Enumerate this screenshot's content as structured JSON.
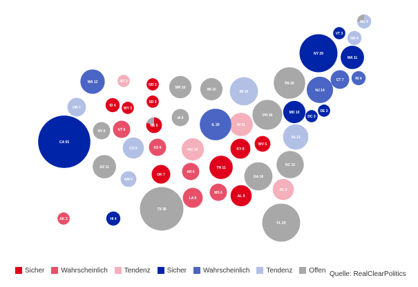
{
  "chart_data": {
    "type": "bubble-map",
    "title": "",
    "categories": {
      "D_safe": "#e0001b",
      "D_likely": "#e8506a",
      "D_lean": "#f4b0bb",
      "R_safe": "#0024a8",
      "R_likely": "#4a65c4",
      "R_lean": "#b2c0e6",
      "tossup": "#a8a8a8"
    },
    "states": [
      {
        "state": "ME",
        "votes": 4,
        "cat": "R_lean",
        "split": {
          "cat": "tossup",
          "votes": 1
        }
      },
      {
        "state": "VT",
        "votes": 3,
        "cat": "R_safe"
      },
      {
        "state": "NH",
        "votes": 4,
        "cat": "R_lean"
      },
      {
        "state": "NY",
        "votes": 29,
        "cat": "R_safe"
      },
      {
        "state": "MA",
        "votes": 11,
        "cat": "R_safe"
      },
      {
        "state": "RI",
        "votes": 4,
        "cat": "R_likely"
      },
      {
        "state": "CT",
        "votes": 7,
        "cat": "R_likely"
      },
      {
        "state": "PA",
        "votes": 20,
        "cat": "tossup"
      },
      {
        "state": "NJ",
        "votes": 14,
        "cat": "R_likely"
      },
      {
        "state": "MD",
        "votes": 10,
        "cat": "R_safe"
      },
      {
        "state": "DE",
        "votes": 3,
        "cat": "R_safe"
      },
      {
        "state": "DC",
        "votes": 3,
        "cat": "R_safe"
      },
      {
        "state": "VA",
        "votes": 13,
        "cat": "R_lean"
      },
      {
        "state": "OH",
        "votes": 18,
        "cat": "tossup"
      },
      {
        "state": "MI",
        "votes": 16,
        "cat": "R_lean"
      },
      {
        "state": "WV",
        "votes": 5,
        "cat": "D_safe"
      },
      {
        "state": "NC",
        "votes": 15,
        "cat": "tossup"
      },
      {
        "state": "KY",
        "votes": 8,
        "cat": "D_safe"
      },
      {
        "state": "IN",
        "votes": 11,
        "cat": "D_lean"
      },
      {
        "state": "IL",
        "votes": 20,
        "cat": "R_likely"
      },
      {
        "state": "WI",
        "votes": 10,
        "cat": "tossup"
      },
      {
        "state": "MN",
        "votes": 10,
        "cat": "tossup"
      },
      {
        "state": "IA",
        "votes": 6,
        "cat": "tossup"
      },
      {
        "state": "MO",
        "votes": 10,
        "cat": "D_lean"
      },
      {
        "state": "TN",
        "votes": 11,
        "cat": "D_safe"
      },
      {
        "state": "GA",
        "votes": 16,
        "cat": "tossup"
      },
      {
        "state": "SC",
        "votes": 9,
        "cat": "D_lean"
      },
      {
        "state": "AL",
        "votes": 9,
        "cat": "D_safe"
      },
      {
        "state": "MS",
        "votes": 6,
        "cat": "D_likely"
      },
      {
        "state": "FL",
        "votes": 29,
        "cat": "tossup"
      },
      {
        "state": "LA",
        "votes": 8,
        "cat": "D_likely"
      },
      {
        "state": "AR",
        "votes": 6,
        "cat": "D_likely"
      },
      {
        "state": "TX",
        "votes": 38,
        "cat": "tossup"
      },
      {
        "state": "OK",
        "votes": 7,
        "cat": "D_safe"
      },
      {
        "state": "KS",
        "votes": 6,
        "cat": "D_likely"
      },
      {
        "state": "NE",
        "votes": 5,
        "cat": "D_safe",
        "split": {
          "cat": "tossup",
          "votes": 1
        }
      },
      {
        "state": "SD",
        "votes": 3,
        "cat": "D_safe"
      },
      {
        "state": "ND",
        "votes": 3,
        "cat": "D_safe"
      },
      {
        "state": "MT",
        "votes": 3,
        "cat": "D_lean"
      },
      {
        "state": "WY",
        "votes": 3,
        "cat": "D_safe"
      },
      {
        "state": "ID",
        "votes": 4,
        "cat": "D_safe"
      },
      {
        "state": "UT",
        "votes": 6,
        "cat": "D_likely"
      },
      {
        "state": "CO",
        "votes": 9,
        "cat": "R_lean"
      },
      {
        "state": "NM",
        "votes": 5,
        "cat": "R_lean"
      },
      {
        "state": "AZ",
        "votes": 11,
        "cat": "tossup"
      },
      {
        "state": "NV",
        "votes": 6,
        "cat": "tossup"
      },
      {
        "state": "WA",
        "votes": 12,
        "cat": "R_likely"
      },
      {
        "state": "OR",
        "votes": 7,
        "cat": "R_lean"
      },
      {
        "state": "CA",
        "votes": 55,
        "cat": "R_safe"
      },
      {
        "state": "AK",
        "votes": 3,
        "cat": "D_likely"
      },
      {
        "state": "HI",
        "votes": 4,
        "cat": "R_safe"
      }
    ]
  },
  "legend": [
    {
      "label": "Sicher",
      "color": "#e0001b"
    },
    {
      "label": "Wahrscheinlich",
      "color": "#e8506a"
    },
    {
      "label": "Tendenz",
      "color": "#f4b0bb"
    },
    {
      "label": "Sicher",
      "color": "#0024a8"
    },
    {
      "label": "Wahrscheinlich",
      "color": "#4a65c4"
    },
    {
      "label": "Tendenz",
      "color": "#b2c0e6"
    },
    {
      "label": "Offen",
      "color": "#a8a8a8"
    }
  ],
  "source": "Quelle: RealClearPolitics"
}
